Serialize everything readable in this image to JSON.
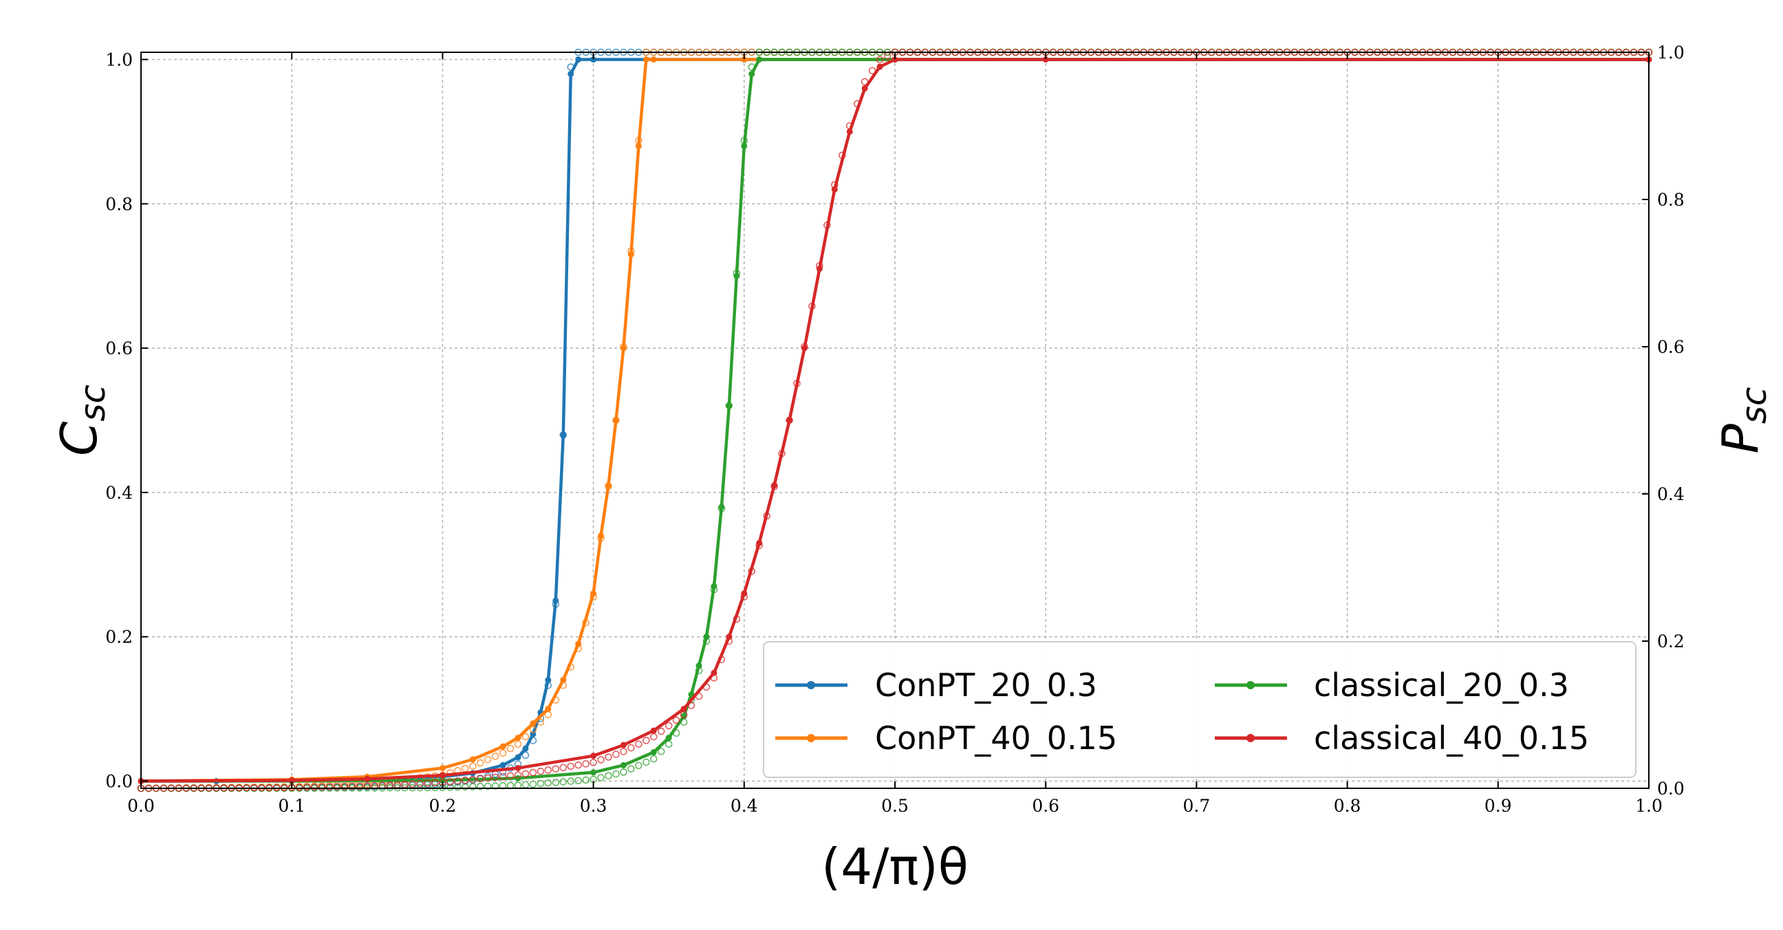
{
  "chart_data": {
    "type": "line",
    "xlabel": "(4/π)θ",
    "ylabel_left": "C",
    "ylabel_left_sub": "sc",
    "ylabel_right": "P",
    "ylabel_right_sub": "sc",
    "xlim": [
      0.0,
      1.0
    ],
    "ylim_left": [
      -0.01,
      1.01
    ],
    "ylim_right": [
      0.0,
      1.0
    ],
    "grid": true,
    "legend": "lower right",
    "x_ticks": [
      "0.0",
      "0.1",
      "0.2",
      "0.3",
      "0.4",
      "0.5",
      "0.6",
      "0.7",
      "0.8",
      "0.9",
      "1.0"
    ],
    "y_ticks_left": [
      "0.0",
      "0.2",
      "0.4",
      "0.6",
      "0.8",
      "1.0"
    ],
    "y_ticks_right": [
      "0.0",
      "0.2",
      "0.4",
      "0.6",
      "0.8",
      "1.0"
    ],
    "series": [
      {
        "name": "ConPT_20_0.3",
        "color": "#1f77b4",
        "x": [
          0.0,
          0.05,
          0.1,
          0.15,
          0.2,
          0.22,
          0.24,
          0.25,
          0.255,
          0.26,
          0.265,
          0.27,
          0.275,
          0.28,
          0.285,
          0.29,
          0.3,
          0.4,
          0.5,
          1.0
        ],
        "y": [
          0.0,
          0.0,
          0.001,
          0.002,
          0.006,
          0.011,
          0.022,
          0.033,
          0.045,
          0.065,
          0.095,
          0.14,
          0.25,
          0.48,
          0.98,
          1.0,
          1.0,
          1.0,
          1.0,
          1.0
        ]
      },
      {
        "name": "ConPT_40_0.15",
        "color": "#ff7f0e",
        "x": [
          0.0,
          0.1,
          0.15,
          0.2,
          0.22,
          0.24,
          0.25,
          0.26,
          0.27,
          0.28,
          0.29,
          0.3,
          0.305,
          0.31,
          0.315,
          0.32,
          0.325,
          0.33,
          0.335,
          0.34,
          0.4,
          0.5,
          1.0
        ],
        "y": [
          0.0,
          0.002,
          0.006,
          0.018,
          0.03,
          0.048,
          0.06,
          0.08,
          0.1,
          0.14,
          0.19,
          0.26,
          0.34,
          0.41,
          0.5,
          0.6,
          0.73,
          0.88,
          1.0,
          1.0,
          1.0,
          1.0,
          1.0
        ]
      },
      {
        "name": "classical_20_0.3",
        "color": "#2ca02c",
        "x": [
          0.0,
          0.1,
          0.2,
          0.25,
          0.3,
          0.32,
          0.34,
          0.35,
          0.36,
          0.365,
          0.37,
          0.375,
          0.38,
          0.385,
          0.39,
          0.395,
          0.4,
          0.405,
          0.41,
          0.5,
          1.0
        ],
        "y": [
          0.0,
          0.0,
          0.001,
          0.004,
          0.012,
          0.022,
          0.04,
          0.06,
          0.09,
          0.12,
          0.16,
          0.2,
          0.27,
          0.38,
          0.52,
          0.7,
          0.88,
          0.98,
          1.0,
          1.0,
          1.0
        ]
      },
      {
        "name": "classical_40_0.15",
        "color": "#d62728",
        "x": [
          0.0,
          0.1,
          0.15,
          0.2,
          0.25,
          0.3,
          0.32,
          0.34,
          0.36,
          0.38,
          0.39,
          0.4,
          0.41,
          0.42,
          0.43,
          0.44,
          0.45,
          0.46,
          0.47,
          0.48,
          0.49,
          0.5,
          0.6,
          1.0
        ],
        "y": [
          0.0,
          0.001,
          0.003,
          0.008,
          0.018,
          0.035,
          0.05,
          0.07,
          0.1,
          0.15,
          0.2,
          0.26,
          0.33,
          0.41,
          0.5,
          0.6,
          0.71,
          0.82,
          0.9,
          0.96,
          0.99,
          1.0,
          1.0,
          1.0
        ]
      }
    ]
  }
}
